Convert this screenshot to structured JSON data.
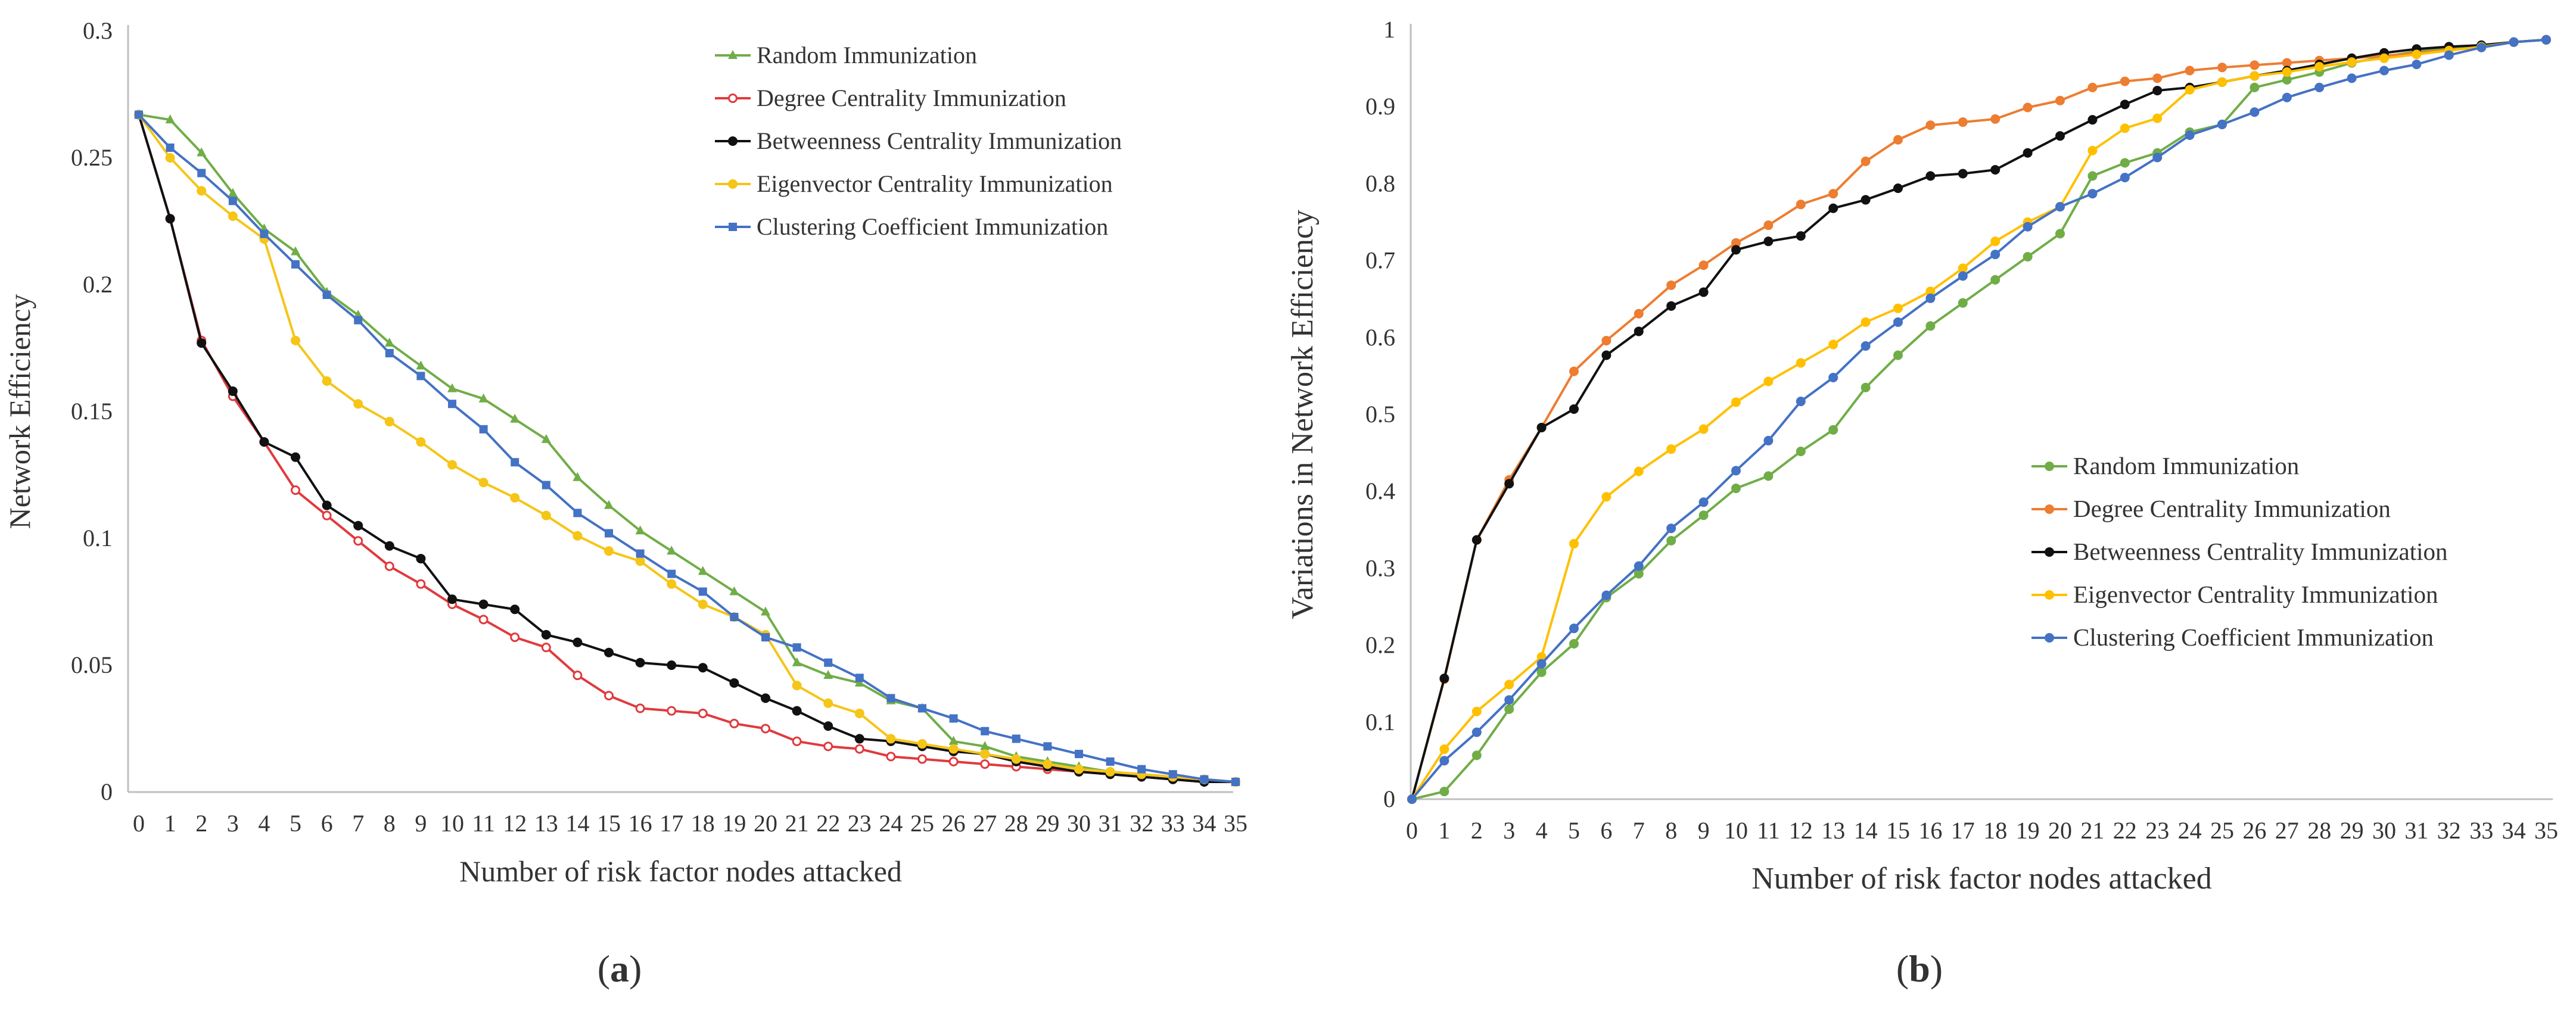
{
  "chart_data": [
    {
      "type": "line",
      "panel_label": "a",
      "xlabel": "Number of risk factor nodes attacked",
      "ylabel": "Network Efficiency",
      "ylim": [
        0,
        0.3
      ],
      "yticks": [
        "0",
        "0.05",
        "0.1",
        "0.15",
        "0.2",
        "0.25",
        "0.3"
      ],
      "x": [
        0,
        1,
        2,
        3,
        4,
        5,
        6,
        7,
        8,
        9,
        10,
        11,
        12,
        13,
        14,
        15,
        16,
        17,
        18,
        19,
        20,
        21,
        22,
        23,
        24,
        25,
        26,
        27,
        28,
        29,
        30,
        31,
        32,
        33,
        34,
        35
      ],
      "grid": false,
      "legend_position": "top-right",
      "series": [
        {
          "name": "Random Immunization",
          "color": "#70ad47",
          "marker": "triangle",
          "values": [
            0.267,
            0.265,
            0.252,
            0.236,
            0.222,
            0.213,
            0.197,
            0.188,
            0.177,
            0.168,
            0.159,
            0.155,
            0.147,
            0.139,
            0.124,
            0.113,
            0.103,
            0.095,
            0.087,
            0.079,
            0.071,
            0.051,
            0.046,
            0.043,
            0.036,
            0.033,
            0.02,
            0.018,
            0.014,
            0.012,
            0.01,
            0.008,
            0.007,
            0.006,
            0.005,
            0.004
          ]
        },
        {
          "name": "Degree Centrality Immunization",
          "color": "#e03a3e",
          "marker": "open-circle",
          "values": [
            0.267,
            0.226,
            0.178,
            0.156,
            0.138,
            0.119,
            0.109,
            0.099,
            0.089,
            0.082,
            0.074,
            0.068,
            0.061,
            0.057,
            0.046,
            0.038,
            0.033,
            0.032,
            0.031,
            0.027,
            0.025,
            0.02,
            0.018,
            0.017,
            0.014,
            0.013,
            0.012,
            0.011,
            0.01,
            0.009,
            0.008,
            0.007,
            0.006,
            0.005,
            0.004,
            0.004
          ]
        },
        {
          "name": "Betweenness Centrality Immunization",
          "color": "#111111",
          "marker": "dot",
          "values": [
            0.267,
            0.226,
            0.177,
            0.158,
            0.138,
            0.132,
            0.113,
            0.105,
            0.097,
            0.092,
            0.076,
            0.074,
            0.072,
            0.062,
            0.059,
            0.055,
            0.051,
            0.05,
            0.049,
            0.043,
            0.037,
            0.032,
            0.026,
            0.021,
            0.02,
            0.018,
            0.016,
            0.015,
            0.012,
            0.01,
            0.008,
            0.007,
            0.006,
            0.005,
            0.004,
            0.004
          ]
        },
        {
          "name": "Eigenvector Centrality Immunization",
          "color": "#f5c518",
          "marker": "dot",
          "values": [
            0.267,
            0.25,
            0.237,
            0.227,
            0.218,
            0.178,
            0.162,
            0.153,
            0.146,
            0.138,
            0.129,
            0.122,
            0.116,
            0.109,
            0.101,
            0.095,
            0.091,
            0.082,
            0.074,
            0.069,
            0.062,
            0.042,
            0.035,
            0.031,
            0.021,
            0.019,
            0.017,
            0.015,
            0.013,
            0.011,
            0.009,
            0.008,
            0.007,
            0.006,
            0.005,
            0.004
          ]
        },
        {
          "name": "Clustering Coefficient Immunization",
          "color": "#4472c4",
          "marker": "square",
          "values": [
            0.267,
            0.254,
            0.244,
            0.233,
            0.22,
            0.208,
            0.196,
            0.186,
            0.173,
            0.164,
            0.153,
            0.143,
            0.13,
            0.121,
            0.11,
            0.102,
            0.094,
            0.086,
            0.079,
            0.069,
            0.061,
            0.057,
            0.051,
            0.045,
            0.037,
            0.033,
            0.029,
            0.024,
            0.021,
            0.018,
            0.015,
            0.012,
            0.009,
            0.007,
            0.005,
            0.004
          ]
        }
      ]
    },
    {
      "type": "line",
      "panel_label": "b",
      "xlabel": "Number of risk factor nodes attacked",
      "ylabel": "Variations in Network Efficiency",
      "ylim": [
        0,
        1
      ],
      "yticks": [
        "0",
        "0.1",
        "0.2",
        "0.3",
        "0.4",
        "0.5",
        "0.6",
        "0.7",
        "0.8",
        "0.9",
        "1"
      ],
      "x": [
        0,
        1,
        2,
        3,
        4,
        5,
        6,
        7,
        8,
        9,
        10,
        11,
        12,
        13,
        14,
        15,
        16,
        17,
        18,
        19,
        20,
        21,
        22,
        23,
        24,
        25,
        26,
        27,
        28,
        29,
        30,
        31,
        32,
        33,
        34,
        35
      ],
      "grid": false,
      "legend_position": "right",
      "series": [
        {
          "name": "Random Immunization",
          "color": "#70ad47",
          "marker": "dot",
          "values": [
            0,
            0.01,
            0.057,
            0.117,
            0.165,
            0.202,
            0.262,
            0.293,
            0.336,
            0.369,
            0.404,
            0.42,
            0.452,
            0.48,
            0.535,
            0.577,
            0.615,
            0.645,
            0.675,
            0.705,
            0.735,
            0.81,
            0.827,
            0.84,
            0.867,
            0.877,
            0.925,
            0.935,
            0.945,
            0.957,
            0.965,
            0.972,
            0.977,
            0.98,
            0.984,
            0.987
          ]
        },
        {
          "name": "Degree Centrality Immunization",
          "color": "#ed7d31",
          "marker": "dot",
          "values": [
            0,
            0.156,
            0.337,
            0.415,
            0.483,
            0.556,
            0.596,
            0.631,
            0.668,
            0.694,
            0.723,
            0.746,
            0.773,
            0.787,
            0.829,
            0.857,
            0.876,
            0.88,
            0.884,
            0.899,
            0.908,
            0.925,
            0.933,
            0.937,
            0.947,
            0.951,
            0.954,
            0.957,
            0.96,
            0.963,
            0.966,
            0.97,
            0.974,
            0.977,
            0.984,
            0.987
          ]
        },
        {
          "name": "Betweenness Centrality Immunization",
          "color": "#111111",
          "marker": "dot",
          "values": [
            0,
            0.157,
            0.337,
            0.41,
            0.483,
            0.507,
            0.577,
            0.608,
            0.641,
            0.659,
            0.714,
            0.725,
            0.732,
            0.768,
            0.779,
            0.794,
            0.81,
            0.813,
            0.818,
            0.84,
            0.862,
            0.883,
            0.903,
            0.921,
            0.925,
            0.932,
            0.94,
            0.947,
            0.955,
            0.963,
            0.97,
            0.975,
            0.978,
            0.98,
            0.984,
            0.987
          ]
        },
        {
          "name": "Eigenvector Centrality Immunization",
          "color": "#ffc000",
          "marker": "dot",
          "values": [
            0,
            0.065,
            0.114,
            0.149,
            0.185,
            0.332,
            0.393,
            0.426,
            0.455,
            0.481,
            0.516,
            0.543,
            0.567,
            0.591,
            0.62,
            0.638,
            0.66,
            0.69,
            0.725,
            0.75,
            0.77,
            0.843,
            0.872,
            0.885,
            0.922,
            0.932,
            0.94,
            0.945,
            0.952,
            0.958,
            0.963,
            0.968,
            0.973,
            0.978,
            0.984,
            0.987
          ]
        },
        {
          "name": "Clustering Coefficient Immunization",
          "color": "#4472c4",
          "marker": "dot",
          "values": [
            0,
            0.05,
            0.087,
            0.129,
            0.176,
            0.222,
            0.265,
            0.303,
            0.352,
            0.386,
            0.427,
            0.466,
            0.517,
            0.548,
            0.589,
            0.62,
            0.651,
            0.68,
            0.708,
            0.744,
            0.77,
            0.787,
            0.808,
            0.834,
            0.863,
            0.877,
            0.893,
            0.912,
            0.925,
            0.937,
            0.947,
            0.955,
            0.967,
            0.977,
            0.984,
            0.987
          ]
        }
      ]
    }
  ]
}
